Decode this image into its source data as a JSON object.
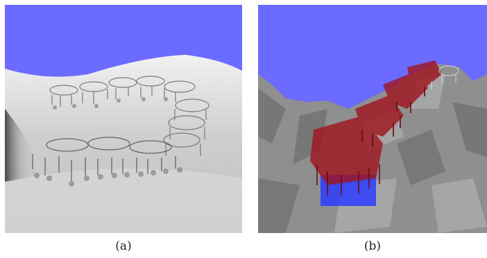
{
  "figure": {
    "panels": [
      {
        "caption": "(a)",
        "sky_color": "#6b6bff",
        "ground_color": "#c8c8c8"
      },
      {
        "caption": "(b)",
        "sky_color": "#6b6bff",
        "ground_color": "#8a8a8a",
        "robot_color": "#a0141e",
        "patch_color": "#2c3cff"
      }
    ]
  }
}
